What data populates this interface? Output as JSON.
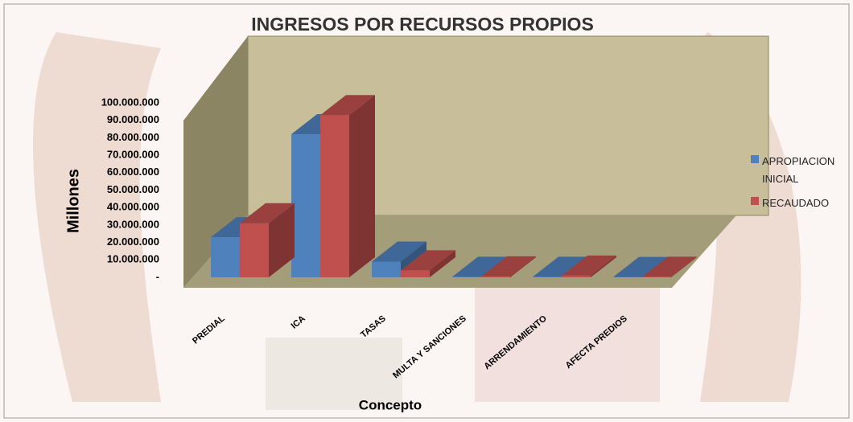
{
  "chart_data": {
    "type": "bar3d",
    "title": "INGRESOS POR RECURSOS PROPIOS",
    "y_label": "Millones",
    "x_label": "Concepto",
    "categories": [
      "PREDIAL",
      "ICA",
      "TASAS",
      "MULTA Y SANCIONES",
      "ARRENDAMIENTO",
      "AFECTA PREDIOS"
    ],
    "series": [
      {
        "name": "APROPIACION INICIAL",
        "color": "#4f81bd",
        "values": [
          23000000,
          82000000,
          9000000,
          300000,
          300000,
          200000
        ]
      },
      {
        "name": "RECAUDADO",
        "color": "#c0504d",
        "values": [
          31000000,
          93000000,
          4000000,
          500000,
          1000000,
          300000
        ]
      }
    ],
    "ylim": [
      0,
      100000000
    ],
    "yticks": [
      {
        "value": 0,
        "label": "-"
      },
      {
        "value": 10000000,
        "label": "10.000.000"
      },
      {
        "value": 20000000,
        "label": "20.000.000"
      },
      {
        "value": 30000000,
        "label": "30.000.000"
      },
      {
        "value": 40000000,
        "label": "40.000.000"
      },
      {
        "value": 50000000,
        "label": "50.000.000"
      },
      {
        "value": 60000000,
        "label": "60.000.000"
      },
      {
        "value": 70000000,
        "label": "70.000.000"
      },
      {
        "value": 80000000,
        "label": "80.000.000"
      },
      {
        "value": 90000000,
        "label": "90.000.000"
      },
      {
        "value": 100000000,
        "label": "100.000.000"
      }
    ],
    "grid": false,
    "legend": "right"
  }
}
